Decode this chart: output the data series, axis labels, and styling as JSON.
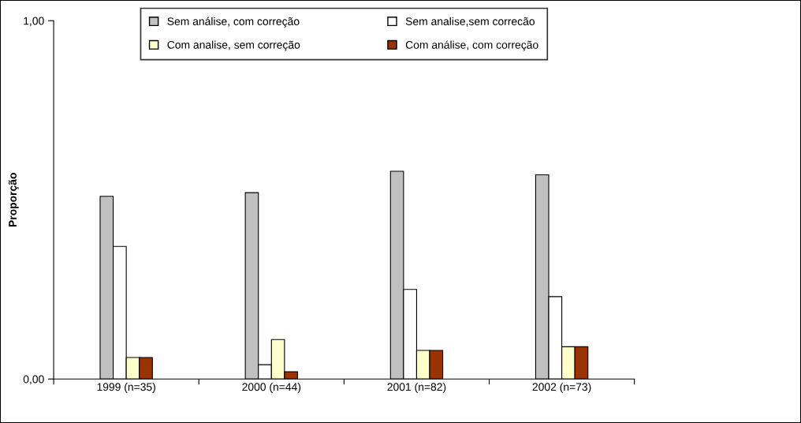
{
  "chart_data": {
    "type": "bar",
    "ylabel": "Proporção",
    "categories": [
      "1999 (n=35)",
      "2000 (n=44)",
      "2001 (n=82)",
      "2002 (n=73)"
    ],
    "series": [
      {
        "name": "Sem análise, com correção",
        "color": "#c0c0c0",
        "values": [
          0.51,
          0.52,
          0.58,
          0.57
        ]
      },
      {
        "name": "Sem analise,sem correcão",
        "color": "#ffffff",
        "values": [
          0.37,
          0.04,
          0.25,
          0.23
        ]
      },
      {
        "name": "Com analise, sem correção",
        "color": "#ffffcc",
        "values": [
          0.06,
          0.11,
          0.08,
          0.09
        ]
      },
      {
        "name": "Com análise, com correção",
        "color": "#993300",
        "values": [
          0.06,
          0.02,
          0.08,
          0.09
        ]
      }
    ],
    "ylim": [
      0,
      1
    ],
    "yticks": [
      {
        "value": 0,
        "label": "0,00"
      },
      {
        "value": 1,
        "label": "1,00"
      }
    ],
    "grid": false,
    "legend": "top"
  }
}
